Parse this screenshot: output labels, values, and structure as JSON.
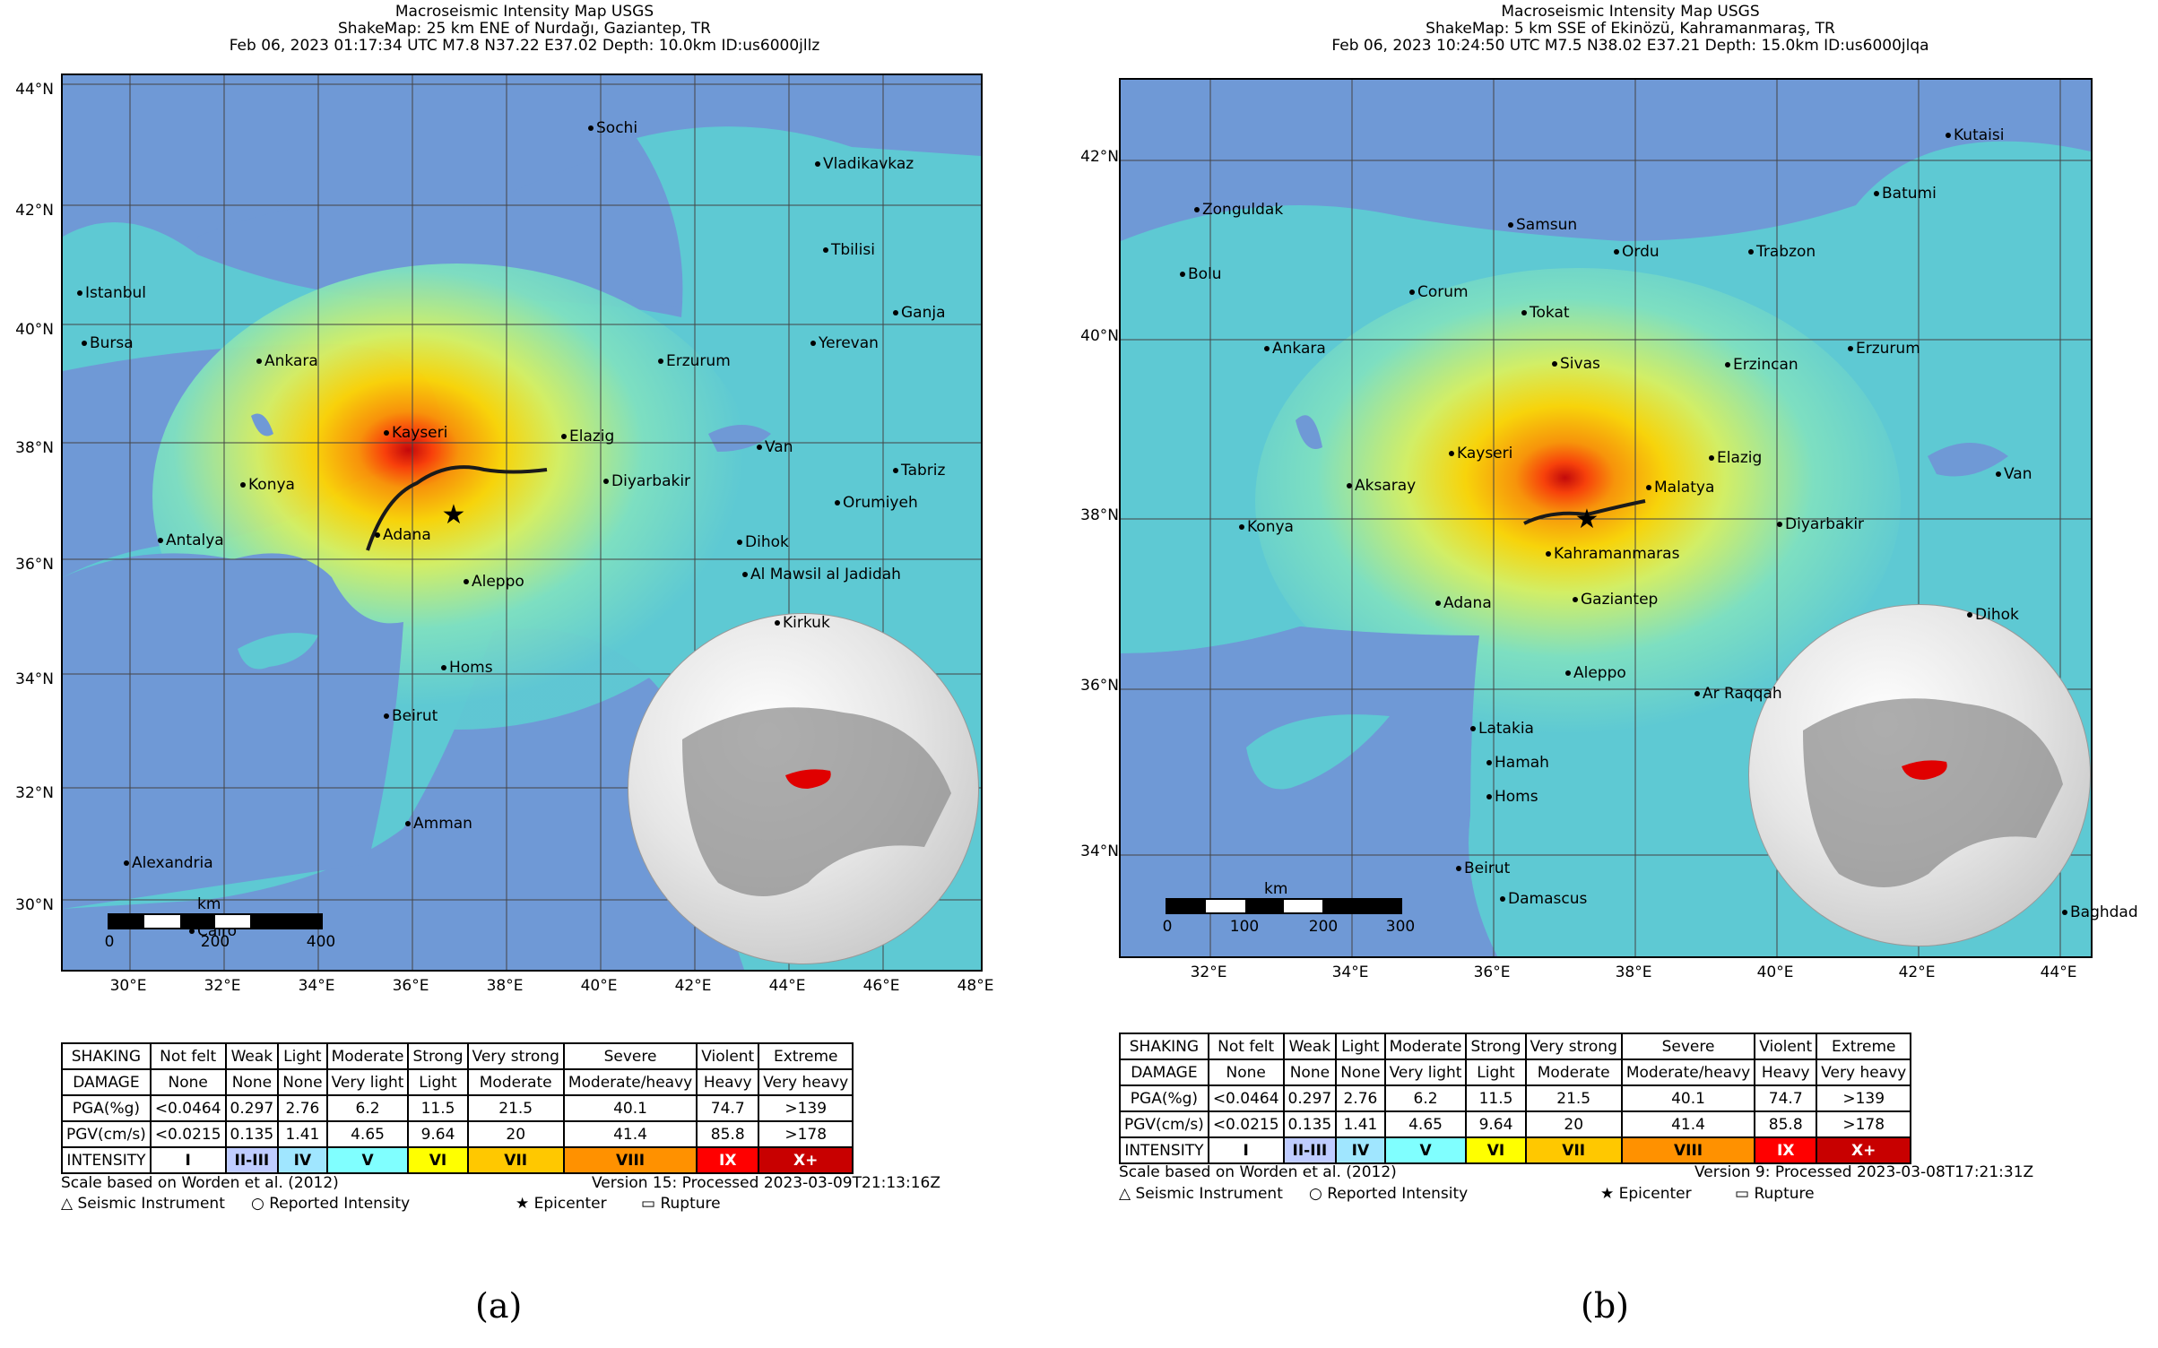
{
  "panels": [
    {
      "title": "Macroseismic Intensity Map USGS",
      "subtitle": "ShakeMap: 25 km ENE of Nurdağı, Gaziantep, TR",
      "event_line": "Feb 06, 2023 01:17:34 UTC M7.8 N37.22 E37.02 Depth: 10.0km ID:us6000jllz",
      "lat_labels": [
        "44°N",
        "42°N",
        "40°N",
        "38°N",
        "36°N",
        "34°N",
        "32°N",
        "30°N"
      ],
      "lon_labels": [
        "30°E",
        "32°E",
        "34°E",
        "36°E",
        "38°E",
        "40°E",
        "42°E",
        "44°E",
        "46°E",
        "48°E"
      ],
      "cities": [
        "Sochi",
        "Vladikavkaz",
        "Tbilisi",
        "Ganja",
        "Yerevan",
        "Istanbul",
        "Bursa",
        "Ankara",
        "Erzurum",
        "Kayseri",
        "Elazig",
        "Van",
        "Tabriz",
        "Konya",
        "Diyarbakir",
        "Orumiyeh",
        "Antalya",
        "Adana",
        "Dihok",
        "Aleppo",
        "Al Mawsil al Jadidah",
        "Kirkuk",
        "Homs",
        "Beirut",
        "Amman",
        "Alexandria",
        "Cairo"
      ],
      "scale": {
        "unit": "km",
        "ticks": [
          "0",
          "200",
          "400"
        ]
      },
      "version": "Version 15: Processed 2023-03-09T21:13:16Z",
      "caption": "(a)"
    },
    {
      "title": "Macroseismic Intensity Map USGS",
      "subtitle": "ShakeMap: 5 km SSE of Ekinözü, Kahramanmaraş, TR",
      "event_line": "Feb 06, 2023 10:24:50 UTC M7.5 N38.02 E37.21 Depth: 15.0km ID:us6000jlqa",
      "lat_labels": [
        "42°N",
        "40°N",
        "38°N",
        "36°N",
        "34°N"
      ],
      "lon_labels": [
        "32°E",
        "34°E",
        "36°E",
        "38°E",
        "40°E",
        "42°E",
        "44°E"
      ],
      "cities": [
        "Kutaisi",
        "Batumi",
        "Zonguldak",
        "Samsun",
        "Ordu",
        "Trabzon",
        "Bolu",
        "Corum",
        "Tokat",
        "Ankara",
        "Erzurum",
        "Sivas",
        "Erzincan",
        "Kayseri",
        "Elazig",
        "Van",
        "Aksaray",
        "Malatya",
        "Konya",
        "Diyarbakir",
        "Kahramanmaras",
        "Adana",
        "Gaziantep",
        "Dihok",
        "Aleppo",
        "Ar Raqqah",
        "Latakia",
        "Hamah",
        "Homs",
        "Beirut",
        "Damascus",
        "Baghdad"
      ],
      "scale": {
        "unit": "km",
        "ticks": [
          "0",
          "100",
          "200",
          "300"
        ]
      },
      "version": "Version 9: Processed 2023-03-08T17:21:31Z",
      "caption": "(b)"
    }
  ],
  "legend": {
    "rows": [
      {
        "label": "SHAKING",
        "cells": [
          "Not felt",
          "Weak",
          "Light",
          "Moderate",
          "Strong",
          "Very strong",
          "Severe",
          "Violent",
          "Extreme"
        ]
      },
      {
        "label": "DAMAGE",
        "cells": [
          "None",
          "None",
          "None",
          "Very light",
          "Light",
          "Moderate",
          "Moderate/heavy",
          "Heavy",
          "Very heavy"
        ]
      },
      {
        "label": "PGA(%g)",
        "cells": [
          "<0.0464",
          "0.297",
          "2.76",
          "6.2",
          "11.5",
          "21.5",
          "40.1",
          "74.7",
          ">139"
        ]
      },
      {
        "label": "PGV(cm/s)",
        "cells": [
          "<0.0215",
          "0.135",
          "1.41",
          "4.65",
          "9.64",
          "20",
          "41.4",
          "85.8",
          ">178"
        ]
      }
    ],
    "intensity_label": "INTENSITY",
    "intensity": [
      "I",
      "II-III",
      "IV",
      "V",
      "VI",
      "VII",
      "VIII",
      "IX",
      "X+"
    ],
    "intensity_colors": [
      "#ffffff",
      "#bfccff",
      "#a0e6ff",
      "#80ffff",
      "#ffff00",
      "#ffc800",
      "#ff9100",
      "#ff0000",
      "#c80000"
    ],
    "scale_note": "Scale based on Worden et al. (2012)",
    "symbols": [
      "△ Seismic Instrument",
      "○ Reported Intensity",
      "★ Epicenter",
      "▭ Rupture"
    ]
  },
  "colors": {
    "sea": "#6f99d6",
    "land_base": "#5ec9d3",
    "terrain_grid": "#444444"
  }
}
